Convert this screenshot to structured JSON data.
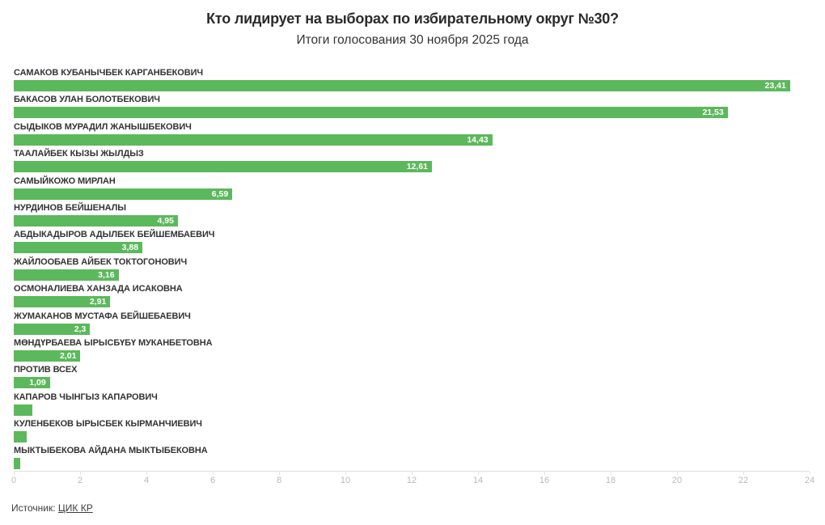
{
  "header": {
    "title": "Кто лидирует на выборах по избирательному округ №30?",
    "subtitle": "Итоги голосования 30 ноября 2025 года"
  },
  "footer": {
    "source_prefix": "Источник: ",
    "source_link_text": "ЦИК КР"
  },
  "colors": {
    "bar": "#5cb85c",
    "bar_value_text": "#ffffff",
    "label_text": "#333333",
    "tick_text": "#b9b9b9",
    "axis_line": "#dddddd",
    "title_text": "#2b2b2b"
  },
  "chart_data": {
    "type": "bar",
    "orientation": "horizontal",
    "title": "Кто лидирует на выборах по избирательному округ №30?",
    "subtitle": "Итоги голосования 30 ноября 2025 года",
    "xlabel": "",
    "ylabel": "",
    "xlim": [
      0,
      24
    ],
    "x_ticks": [
      0,
      2,
      4,
      6,
      8,
      10,
      12,
      14,
      16,
      18,
      20,
      22,
      24
    ],
    "grid": false,
    "legend": false,
    "categories": [
      "САМАКОВ КУБАНЫЧБЕК КАРГАНБЕКОВИЧ",
      "БАКАСОВ УЛАН БОЛОТБЕКОВИЧ",
      "СЫДЫКОВ МУРАДИЛ ЖАНЫШБЕКОВИЧ",
      "ТААЛАЙБЕК КЫЗЫ ЖЫЛДЫЗ",
      "САМЫЙКОЖО МИРЛАН",
      "НУРДИНОВ БЕЙШЕНАЛЫ",
      "АБДЫКАДЫРОВ АДЫЛБЕК БЕЙШЕМБАЕВИЧ",
      "ЖАЙЛООБАЕВ АЙБЕК ТОКТОГОНОВИЧ",
      "ОСМОНАЛИЕВА ХАНЗАДА ИСАКОВНА",
      "ЖУМАКАНОВ МУСТАФА БЕЙШЕБАЕВИЧ",
      "МӨНДҮРБАЕВА ЫРЫСБҮБҮ МУКАНБЕТОВНА",
      "ПРОТИВ ВСЕХ",
      "КАПАРОВ ЧЫНГЫЗ КАПАРОВИЧ",
      "КУЛЕНБЕКОВ ЫРЫСБЕК КЫРМАНЧИЕВИЧ",
      "МЫКТЫБЕКОВА АЙДАНА МЫКТЫБЕКОВНА"
    ],
    "values": [
      23.41,
      21.53,
      14.43,
      12.61,
      6.59,
      4.95,
      3.88,
      3.16,
      2.91,
      2.3,
      2.01,
      1.09,
      0.56,
      0.39,
      0.2
    ],
    "value_labels": [
      "23,41",
      "21,53",
      "14,43",
      "12,61",
      "6,59",
      "4,95",
      "3,88",
      "3,16",
      "2,91",
      "2,3",
      "2,01",
      "1,09",
      "",
      "",
      ""
    ]
  }
}
